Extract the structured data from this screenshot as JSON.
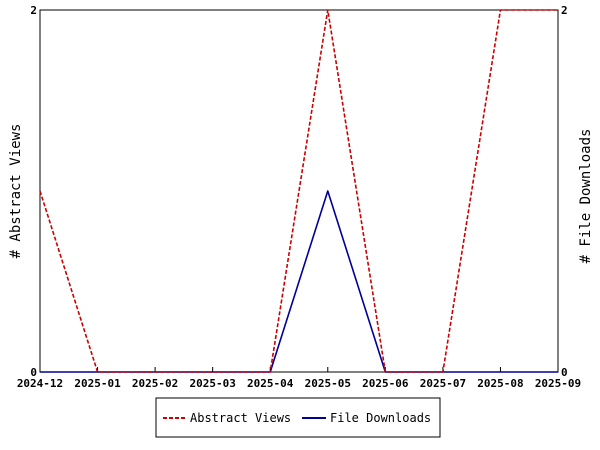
{
  "chart_data": {
    "type": "line",
    "x": [
      "2024-12",
      "2025-01",
      "2025-02",
      "2025-03",
      "2025-04",
      "2025-05",
      "2025-06",
      "2025-07",
      "2025-08",
      "2025-09"
    ],
    "x_tick_labels": [
      "2024-12",
      "2025-01",
      "2025-02",
      "2025-03",
      "2025-04",
      "2025-05",
      "2025-06",
      "2025-07",
      "2025-08",
      "2025-09"
    ],
    "series": [
      {
        "name": "Abstract Views",
        "axis": "left",
        "color": "#cc0000",
        "dash": "dashed",
        "values": [
          1,
          0,
          0,
          0,
          0,
          2,
          0,
          0,
          2,
          2
        ]
      },
      {
        "name": "File Downloads",
        "axis": "right",
        "color": "#000099",
        "dash": "solid",
        "values": [
          0,
          0,
          0,
          0,
          0,
          1,
          0,
          0,
          0,
          0
        ]
      }
    ],
    "ylabel_left": "# Abstract Views",
    "ylabel_right": "# File Downloads",
    "ylim_left": [
      0,
      2
    ],
    "ylim_right": [
      0,
      2
    ],
    "y_tick_labels_left": [
      "0",
      "2"
    ],
    "y_tick_labels_right": [
      "0",
      "2"
    ],
    "grid": false,
    "legend": "bottom-center"
  }
}
